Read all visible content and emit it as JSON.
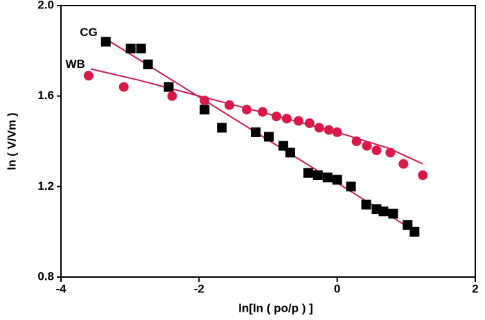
{
  "chart_data": {
    "type": "scatter",
    "x_label": "ln[ln ( po/p ) ]",
    "y_label": "ln ( V/Vm )",
    "xlim": [
      -4,
      2
    ],
    "xticks": [
      -4,
      -2,
      0,
      2
    ],
    "ylim": [
      0.8,
      2.0
    ],
    "yticks": [
      0.8,
      1.2,
      1.6,
      {
        "value": 2.0,
        "label": "2.0"
      }
    ],
    "series": [
      {
        "name": "CG",
        "color": "#000000",
        "marker": "square",
        "fit_color": "#cc1a4a",
        "x": [
          -3.35,
          -2.99,
          -2.84,
          -2.74,
          -2.44,
          -1.92,
          -1.67,
          -1.18,
          -0.99,
          -0.78,
          -0.68,
          -0.42,
          -0.28,
          -0.14,
          0,
          0.2,
          0.42,
          0.57,
          0.67,
          0.81,
          1.02,
          1.12
        ],
        "values": [
          1.84,
          1.81,
          1.81,
          1.74,
          1.64,
          1.54,
          1.46,
          1.44,
          1.42,
          1.38,
          1.35,
          1.26,
          1.25,
          1.24,
          1.23,
          1.2,
          1.12,
          1.1,
          1.09,
          1.08,
          1.03,
          1.0
        ],
        "fit": {
          "x": [
            -3.39,
            1.19
          ],
          "values": [
            1.86,
            0.99
          ]
        }
      },
      {
        "name": "WB",
        "color": "#d8194a",
        "marker": "circle",
        "fit_color": "#cc1a4a",
        "x": [
          -3.6,
          -3.09,
          -2.39,
          -1.92,
          -1.56,
          -1.31,
          -1.08,
          -0.88,
          -0.73,
          -0.56,
          -0.4,
          -0.26,
          -0.12,
          0,
          0.28,
          0.43,
          0.57,
          0.77,
          0.96,
          1.24
        ],
        "values": [
          1.69,
          1.64,
          1.6,
          1.58,
          1.56,
          1.54,
          1.53,
          1.51,
          1.5,
          1.49,
          1.48,
          1.46,
          1.45,
          1.44,
          1.4,
          1.38,
          1.36,
          1.35,
          1.3,
          1.25
        ],
        "fit": {
          "x": [
            -3.57,
            -2.87,
            -1.87,
            -0.86,
            0,
            0.74,
            1.24
          ],
          "values": [
            1.72,
            1.67,
            1.59,
            1.51,
            1.44,
            1.37,
            1.3
          ]
        }
      }
    ]
  }
}
